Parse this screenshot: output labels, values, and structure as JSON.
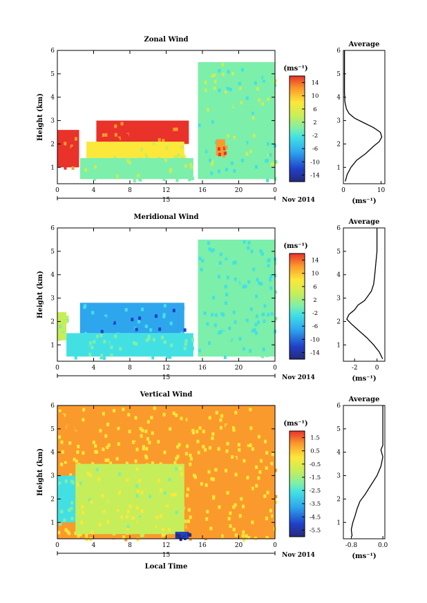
{
  "figure": {
    "xlabel": "Local Time",
    "xticks": [
      "0",
      "4",
      "8",
      "12",
      "16",
      "20",
      "0"
    ],
    "date_label": "15",
    "month_label": "Nov 2014",
    "ylabel": "Height (km)",
    "unit_label": "(ms⁻¹)",
    "average_title": "Average",
    "average_xlabel": "(ms⁻¹)"
  },
  "chart_data": [
    {
      "type": "heatmap",
      "title": "Zonal Wind",
      "xlabel": "",
      "ylabel": "Height (km)",
      "xlim": [
        0,
        24
      ],
      "ylim": [
        0.3,
        6
      ],
      "yticks": [
        "1",
        "2",
        "3",
        "4",
        "5",
        "6"
      ],
      "colorbar": {
        "ticks": [
          "14",
          "10",
          "6",
          "2",
          "-2",
          "-6",
          "-10",
          "-14"
        ],
        "range": [
          -16,
          16
        ]
      },
      "regions": [
        {
          "t": [
            0,
            2.4
          ],
          "h": [
            1.0,
            2.6
          ],
          "value": 14
        },
        {
          "t": [
            4.3,
            14.5
          ],
          "h": [
            2.0,
            3.0
          ],
          "value": 14
        },
        {
          "t": [
            3.2,
            14
          ],
          "h": [
            1.4,
            2.1
          ],
          "value": 6
        },
        {
          "t": [
            2.5,
            15
          ],
          "h": [
            0.5,
            1.4
          ],
          "value": 1
        },
        {
          "t": [
            15.5,
            24
          ],
          "h": [
            0.5,
            5.5
          ],
          "value": 0
        },
        {
          "t": [
            17.5,
            18.5
          ],
          "h": [
            1.5,
            2.2
          ],
          "value": 12
        }
      ],
      "profile": {
        "type": "line",
        "title": "Average",
        "xlabel": "(ms⁻¹)",
        "xlim": [
          0,
          11
        ],
        "xticks": [
          "0",
          "10"
        ],
        "height": [
          0.4,
          0.7,
          1.0,
          1.3,
          1.6,
          1.9,
          2.1,
          2.3,
          2.5,
          2.7,
          2.9,
          3.1,
          3.3,
          3.5,
          3.8,
          4.2,
          4.6,
          5.0,
          5.5,
          6.0
        ],
        "values": [
          0.5,
          1.0,
          2.0,
          3.5,
          6.0,
          8.0,
          9.5,
          10.2,
          9.8,
          8.0,
          5.5,
          3.0,
          1.5,
          0.8,
          0.4,
          0.3,
          0.3,
          0.3,
          0.3,
          0.3
        ]
      }
    },
    {
      "type": "heatmap",
      "title": "Meridional Wind",
      "xlabel": "",
      "ylabel": "Height (km)",
      "xlim": [
        0,
        24
      ],
      "ylim": [
        0.3,
        6
      ],
      "yticks": [
        "1",
        "2",
        "3",
        "4",
        "5",
        "6"
      ],
      "colorbar": {
        "ticks": [
          "14",
          "10",
          "6",
          "2",
          "-2",
          "-6",
          "-10",
          "-14"
        ],
        "range": [
          -16,
          16
        ]
      },
      "regions": [
        {
          "t": [
            0,
            1
          ],
          "h": [
            1.2,
            2.4
          ],
          "value": 2
        },
        {
          "t": [
            2.5,
            14
          ],
          "h": [
            1.5,
            2.8
          ],
          "value": -7
        },
        {
          "t": [
            1,
            15
          ],
          "h": [
            0.5,
            1.5
          ],
          "value": -2
        },
        {
          "t": [
            15.5,
            24
          ],
          "h": [
            0.5,
            5.5
          ],
          "value": -1
        }
      ],
      "profile": {
        "type": "line",
        "title": "Average",
        "xlabel": "(ms⁻¹)",
        "xlim": [
          -3,
          0.7
        ],
        "xticks": [
          "-2",
          "0"
        ],
        "height": [
          0.4,
          0.7,
          1.0,
          1.3,
          1.6,
          1.9,
          2.1,
          2.3,
          2.5,
          2.7,
          2.9,
          3.1,
          3.3,
          3.6,
          4.0,
          4.5,
          5.0,
          5.5,
          6.0
        ],
        "values": [
          0.5,
          0.2,
          -0.3,
          -0.9,
          -1.6,
          -2.3,
          -2.7,
          -2.5,
          -2.0,
          -1.7,
          -1.1,
          -0.8,
          -0.5,
          -0.3,
          -0.2,
          -0.1,
          0,
          0,
          0
        ]
      }
    },
    {
      "type": "heatmap",
      "title": "Vertical Wind",
      "xlabel": "Local Time",
      "ylabel": "Height (km)",
      "xlim": [
        0,
        24
      ],
      "ylim": [
        0.3,
        6
      ],
      "yticks": [
        "1",
        "2",
        "3",
        "4",
        "5",
        "6"
      ],
      "colorbar": {
        "ticks": [
          "1.5",
          "0.5",
          "-0.5",
          "-1.5",
          "-2.5",
          "-3.5",
          "-4.5",
          "-5.5"
        ],
        "range": [
          -6,
          2
        ]
      },
      "regions": [
        {
          "t": [
            0,
            24
          ],
          "h": [
            0.3,
            6
          ],
          "value": 0.3
        },
        {
          "t": [
            0,
            2
          ],
          "h": [
            1.0,
            3.0
          ],
          "value": -2.5
        },
        {
          "t": [
            2,
            14
          ],
          "h": [
            0.5,
            3.5
          ],
          "value": -1.0
        },
        {
          "t": [
            13,
            14.5
          ],
          "h": [
            0.3,
            0.6
          ],
          "value": -5
        }
      ],
      "profile": {
        "type": "line",
        "title": "Average",
        "xlabel": "(ms⁻¹)",
        "xlim": [
          -1.0,
          0.05
        ],
        "xticks": [
          "-0.8",
          "0.0"
        ],
        "height": [
          0.4,
          0.7,
          1.0,
          1.3,
          1.6,
          1.9,
          2.2,
          2.6,
          3.0,
          3.4,
          3.8,
          4.1,
          4.3,
          4.5,
          5.0,
          5.5,
          6.0
        ],
        "values": [
          -0.78,
          -0.8,
          -0.76,
          -0.7,
          -0.65,
          -0.58,
          -0.45,
          -0.3,
          -0.15,
          -0.05,
          0.0,
          -0.05,
          0.0,
          0.0,
          0.0,
          0.0,
          0.0
        ]
      }
    }
  ]
}
